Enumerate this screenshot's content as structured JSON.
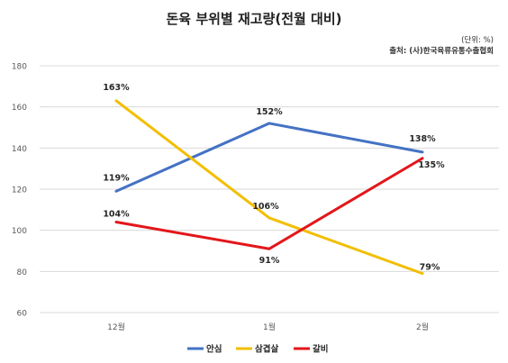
{
  "chart_data": {
    "type": "line",
    "title": "돈육 부위별 재고량(전월 대비)",
    "unit_note": "(단위: %)",
    "source_note": "출처: (사)한국육류유통수출협회",
    "categories": [
      "12월",
      "1월",
      "2월"
    ],
    "ylim": [
      60,
      180
    ],
    "yticks": [
      60,
      80,
      100,
      120,
      140,
      160,
      180
    ],
    "grid": true,
    "legend": "bottom",
    "series": [
      {
        "name": "안심",
        "values": [
          119,
          152,
          138
        ],
        "labels": [
          "119%",
          "152%",
          "138%"
        ],
        "color": "#4472C4"
      },
      {
        "name": "삼겹살",
        "values": [
          163,
          106,
          79
        ],
        "labels": [
          "163%",
          "106%",
          "79%"
        ],
        "color": "#F2BE00"
      },
      {
        "name": "갈비",
        "values": [
          104,
          91,
          135
        ],
        "labels": [
          "104%",
          "91%",
          "135%"
        ],
        "color": "#E3161A"
      }
    ]
  }
}
